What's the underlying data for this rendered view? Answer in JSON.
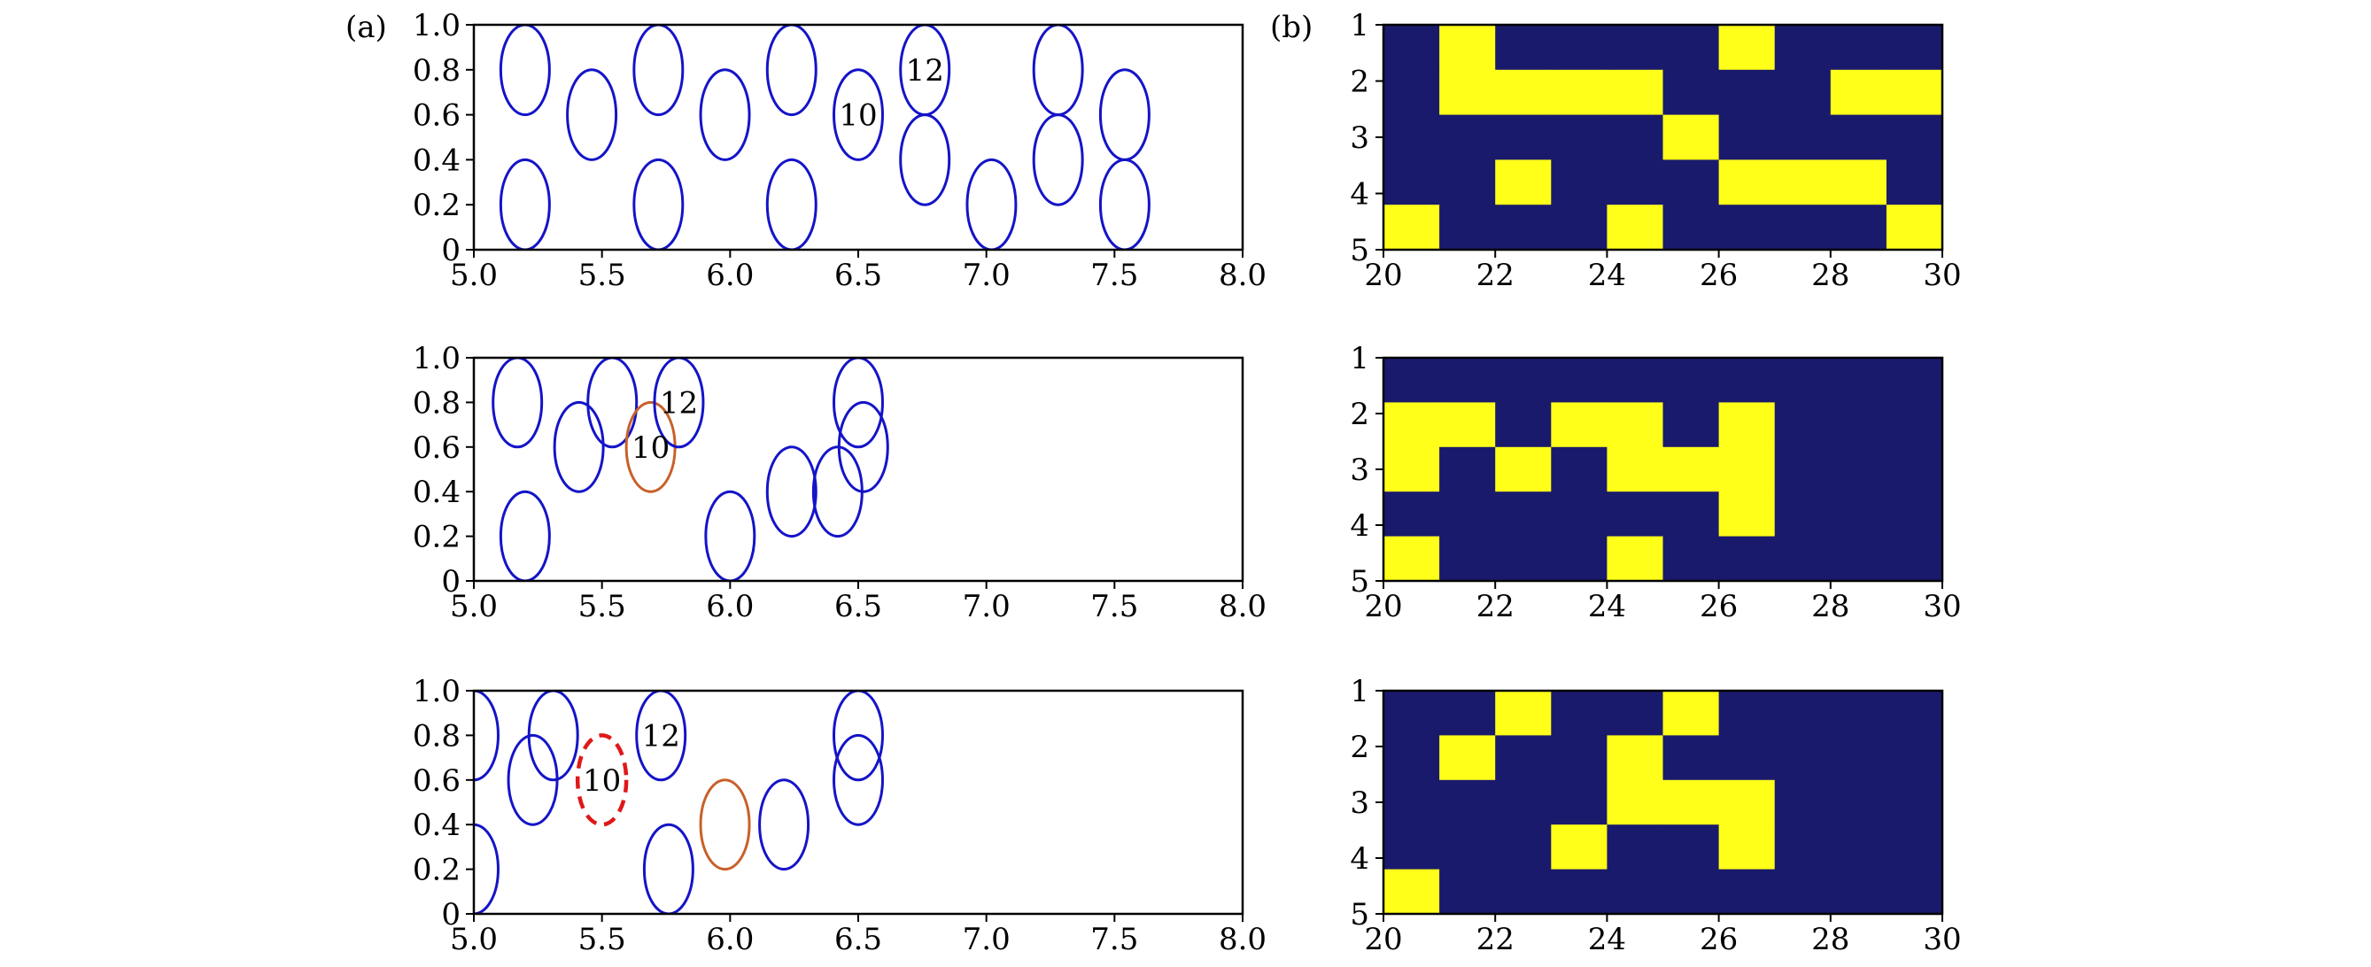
{
  "colors": {
    "background": "#ffffff",
    "axis": "#000000",
    "blue_ellipse": "#1414c8",
    "orange_ellipse": "#c8602a",
    "red_dashed": "#e01818",
    "heat_off": "#1a1a6c",
    "heat_on": "#ffff1a"
  },
  "panel_labels": {
    "a": "(a)",
    "b": "(b)"
  },
  "chart_data": [
    {
      "type": "scatter",
      "panel": "a",
      "row": 1,
      "title": "",
      "xlabel": "",
      "ylabel": "",
      "xlim": [
        5.0,
        8.0
      ],
      "ylim": [
        0,
        1.0
      ],
      "xticks": [
        "5.0",
        "5.5",
        "6.0",
        "6.5",
        "7.0",
        "7.5",
        "8.0"
      ],
      "yticks": [
        "0",
        "0.2",
        "0.4",
        "0.6",
        "0.8",
        "1.0"
      ],
      "ellipse_radius": {
        "x": 0.095,
        "y": 0.2
      },
      "ellipses": [
        {
          "x": 5.2,
          "y": 0.8,
          "style": "blue"
        },
        {
          "x": 5.2,
          "y": 0.2,
          "style": "blue"
        },
        {
          "x": 5.46,
          "y": 0.6,
          "style": "blue"
        },
        {
          "x": 5.72,
          "y": 0.8,
          "style": "blue"
        },
        {
          "x": 5.72,
          "y": 0.2,
          "style": "blue"
        },
        {
          "x": 5.98,
          "y": 0.6,
          "style": "blue"
        },
        {
          "x": 6.24,
          "y": 0.8,
          "style": "blue"
        },
        {
          "x": 6.24,
          "y": 0.2,
          "style": "blue"
        },
        {
          "x": 6.5,
          "y": 0.6,
          "style": "blue"
        },
        {
          "x": 6.76,
          "y": 0.8,
          "style": "blue"
        },
        {
          "x": 6.76,
          "y": 0.4,
          "style": "blue"
        },
        {
          "x": 7.02,
          "y": 0.2,
          "style": "blue"
        },
        {
          "x": 7.28,
          "y": 0.8,
          "style": "blue"
        },
        {
          "x": 7.28,
          "y": 0.4,
          "style": "blue"
        },
        {
          "x": 7.54,
          "y": 0.6,
          "style": "blue"
        },
        {
          "x": 7.54,
          "y": 0.2,
          "style": "blue"
        }
      ],
      "annotations": [
        {
          "text": "10",
          "x": 6.5,
          "y": 0.6
        },
        {
          "text": "12",
          "x": 6.76,
          "y": 0.8
        }
      ]
    },
    {
      "type": "scatter",
      "panel": "a",
      "row": 2,
      "title": "",
      "xlabel": "",
      "ylabel": "",
      "xlim": [
        5.0,
        8.0
      ],
      "ylim": [
        0,
        1.0
      ],
      "xticks": [
        "5.0",
        "5.5",
        "6.0",
        "6.5",
        "7.0",
        "7.5",
        "8.0"
      ],
      "yticks": [
        "0",
        "0.2",
        "0.4",
        "0.6",
        "0.8",
        "1.0"
      ],
      "ellipse_radius": {
        "x": 0.095,
        "y": 0.2
      },
      "ellipses": [
        {
          "x": 5.17,
          "y": 0.8,
          "style": "blue"
        },
        {
          "x": 5.2,
          "y": 0.2,
          "style": "blue"
        },
        {
          "x": 5.41,
          "y": 0.6,
          "style": "blue"
        },
        {
          "x": 5.54,
          "y": 0.8,
          "style": "blue"
        },
        {
          "x": 5.69,
          "y": 0.6,
          "style": "orange"
        },
        {
          "x": 5.8,
          "y": 0.8,
          "style": "blue"
        },
        {
          "x": 6.0,
          "y": 0.2,
          "style": "blue"
        },
        {
          "x": 6.24,
          "y": 0.4,
          "style": "blue"
        },
        {
          "x": 6.42,
          "y": 0.4,
          "style": "blue"
        },
        {
          "x": 6.5,
          "y": 0.8,
          "style": "blue"
        },
        {
          "x": 6.52,
          "y": 0.6,
          "style": "blue"
        }
      ],
      "annotations": [
        {
          "text": "10",
          "x": 5.69,
          "y": 0.6
        },
        {
          "text": "12",
          "x": 5.8,
          "y": 0.8
        }
      ]
    },
    {
      "type": "scatter",
      "panel": "a",
      "row": 3,
      "title": "",
      "xlabel": "",
      "ylabel": "",
      "xlim": [
        5.0,
        8.0
      ],
      "ylim": [
        0,
        1.0
      ],
      "xticks": [
        "5.0",
        "5.5",
        "6.0",
        "6.5",
        "7.0",
        "7.5",
        "8.0"
      ],
      "yticks": [
        "0",
        "0.2",
        "0.4",
        "0.6",
        "0.8",
        "1.0"
      ],
      "ellipse_radius": {
        "x": 0.095,
        "y": 0.2
      },
      "ellipses": [
        {
          "x": 5.0,
          "y": 0.8,
          "style": "blue"
        },
        {
          "x": 5.0,
          "y": 0.2,
          "style": "blue"
        },
        {
          "x": 5.23,
          "y": 0.6,
          "style": "blue"
        },
        {
          "x": 5.31,
          "y": 0.8,
          "style": "blue"
        },
        {
          "x": 5.5,
          "y": 0.6,
          "style": "red-dashed"
        },
        {
          "x": 5.73,
          "y": 0.8,
          "style": "blue"
        },
        {
          "x": 5.76,
          "y": 0.2,
          "style": "blue"
        },
        {
          "x": 5.98,
          "y": 0.4,
          "style": "orange"
        },
        {
          "x": 6.21,
          "y": 0.4,
          "style": "blue"
        },
        {
          "x": 6.5,
          "y": 0.8,
          "style": "blue"
        },
        {
          "x": 6.5,
          "y": 0.6,
          "style": "blue"
        }
      ],
      "annotations": [
        {
          "text": "10",
          "x": 5.5,
          "y": 0.6
        },
        {
          "text": "12",
          "x": 5.73,
          "y": 0.8
        }
      ]
    },
    {
      "type": "heatmap",
      "panel": "b",
      "row": 1,
      "title": "",
      "xlabel": "",
      "ylabel": "",
      "xlim": [
        20,
        30
      ],
      "ylim": [
        5,
        1
      ],
      "xticks": [
        "20",
        "22",
        "24",
        "26",
        "28",
        "30"
      ],
      "yticks": [
        "1",
        "2",
        "3",
        "4",
        "5"
      ],
      "columns": [
        20,
        21,
        22,
        23,
        24,
        25,
        26,
        27,
        28,
        29
      ],
      "rows": [
        1,
        2,
        3,
        4,
        5
      ],
      "values": [
        [
          0,
          1,
          0,
          0,
          0,
          0,
          1,
          0,
          0,
          0
        ],
        [
          0,
          1,
          1,
          1,
          1,
          0,
          0,
          0,
          1,
          1
        ],
        [
          0,
          0,
          0,
          0,
          0,
          1,
          0,
          0,
          0,
          0
        ],
        [
          0,
          0,
          1,
          0,
          0,
          0,
          1,
          1,
          1,
          0
        ],
        [
          1,
          0,
          0,
          0,
          1,
          0,
          0,
          0,
          0,
          1
        ]
      ]
    },
    {
      "type": "heatmap",
      "panel": "b",
      "row": 2,
      "title": "",
      "xlabel": "",
      "ylabel": "",
      "xlim": [
        20,
        30
      ],
      "ylim": [
        5,
        1
      ],
      "xticks": [
        "20",
        "22",
        "24",
        "26",
        "28",
        "30"
      ],
      "yticks": [
        "1",
        "2",
        "3",
        "4",
        "5"
      ],
      "columns": [
        20,
        21,
        22,
        23,
        24,
        25,
        26,
        27,
        28,
        29
      ],
      "rows": [
        1,
        2,
        3,
        4,
        5
      ],
      "values": [
        [
          0,
          0,
          0,
          0,
          0,
          0,
          0,
          0,
          0,
          0
        ],
        [
          1,
          1,
          0,
          1,
          1,
          0,
          1,
          0,
          0,
          0
        ],
        [
          1,
          0,
          1,
          0,
          1,
          1,
          1,
          0,
          0,
          0
        ],
        [
          0,
          0,
          0,
          0,
          0,
          0,
          1,
          0,
          0,
          0
        ],
        [
          1,
          0,
          0,
          0,
          1,
          0,
          0,
          0,
          0,
          0
        ]
      ]
    },
    {
      "type": "heatmap",
      "panel": "b",
      "row": 3,
      "title": "",
      "xlabel": "",
      "ylabel": "",
      "xlim": [
        20,
        30
      ],
      "ylim": [
        5,
        1
      ],
      "xticks": [
        "20",
        "22",
        "24",
        "26",
        "28",
        "30"
      ],
      "yticks": [
        "1",
        "2",
        "3",
        "4",
        "5"
      ],
      "columns": [
        20,
        21,
        22,
        23,
        24,
        25,
        26,
        27,
        28,
        29
      ],
      "rows": [
        1,
        2,
        3,
        4,
        5
      ],
      "values": [
        [
          0,
          0,
          1,
          0,
          0,
          1,
          0,
          0,
          0,
          0
        ],
        [
          0,
          1,
          0,
          0,
          1,
          0,
          0,
          0,
          0,
          0
        ],
        [
          0,
          0,
          0,
          0,
          1,
          1,
          1,
          0,
          0,
          0
        ],
        [
          0,
          0,
          0,
          1,
          0,
          0,
          1,
          0,
          0,
          0
        ],
        [
          1,
          0,
          0,
          0,
          0,
          0,
          0,
          0,
          0,
          0
        ]
      ]
    }
  ]
}
